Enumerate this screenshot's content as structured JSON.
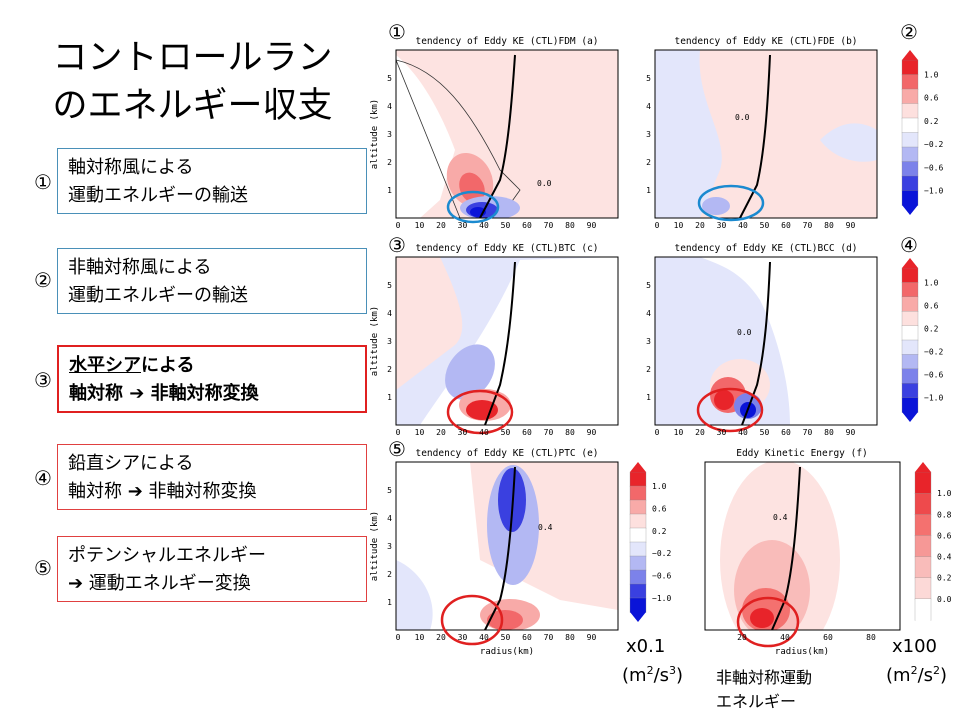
{
  "title": {
    "line1": "コントロールラン",
    "line2": "のエネルギー収支"
  },
  "items": [
    {
      "num": "①",
      "line1": "軸対称風による",
      "line2": "運動エネルギーの輸送"
    },
    {
      "num": "②",
      "line1": "非軸対称風による",
      "line2": "運動エネルギーの輸送"
    },
    {
      "num": "③",
      "line1a": "水平シア",
      "line1b": "による",
      "line2": "軸対称 ➔ 非軸対称変換"
    },
    {
      "num": "④",
      "line1": "鉛直シアによる",
      "line2": "軸対称 ➔ 非軸対称変換"
    },
    {
      "num": "⑤",
      "line1": "ポテンシャルエネルギー",
      "line2": "➔ 運動エネルギー変換"
    }
  ],
  "panels": [
    {
      "num": "①",
      "title": "tendency of Eddy KE (CTL)FDM (a)"
    },
    {
      "num": "②",
      "title": "tendency of Eddy KE (CTL)FDE (b)"
    },
    {
      "num": "③",
      "title": "tendency of Eddy KE (CTL)BTC (c)"
    },
    {
      "num": "④",
      "title": "tendency of Eddy KE (CTL)BCC (d)"
    },
    {
      "num": "⑤",
      "title": "tendency of Eddy KE (CTL)PTC (e)"
    },
    {
      "num": "",
      "title": "Eddy Kinetic Energy (f)"
    }
  ],
  "axes": {
    "ylabel": "altitude (km)",
    "xlabel": "radius(km)",
    "xticks": [
      "0",
      "10",
      "20",
      "30",
      "40",
      "50",
      "60",
      "70",
      "80",
      "90"
    ],
    "yticks": [
      "1",
      "2",
      "3",
      "4",
      "5"
    ],
    "xticks_f": [
      "20",
      "40",
      "60",
      "80"
    ]
  },
  "colorbar_tend": {
    "labels": [
      "1.0",
      "0.6",
      "0.2",
      "−0.2",
      "−0.6",
      "−1.0"
    ],
    "colors": [
      "#e8242a",
      "#f2686a",
      "#f8aaa8",
      "#fde0de",
      "#ffffff",
      "#e3e6fb",
      "#b3b8f3",
      "#7c82ea",
      "#3a40e0",
      "#0a14d8"
    ]
  },
  "colorbar_ke": {
    "labels": [
      "1.0",
      "0.8",
      "0.6",
      "0.4",
      "0.2",
      "0.0"
    ],
    "colors": [
      "#e8242a",
      "#ee4a4c",
      "#f4716f",
      "#f69896",
      "#f9bcba",
      "#fcd9d7",
      "#ffffff"
    ]
  },
  "contour_labels": {
    "zero": "0.0",
    "ke": "0.4",
    "ptc": "0.4"
  },
  "notes": {
    "scale_a": "x0.1",
    "unit_a": "(m²/s³)",
    "scale_b": "x100",
    "unit_b": "(m²/s²)",
    "ke_label1": "非軸対称運動",
    "ke_label2": "エネルギー"
  }
}
